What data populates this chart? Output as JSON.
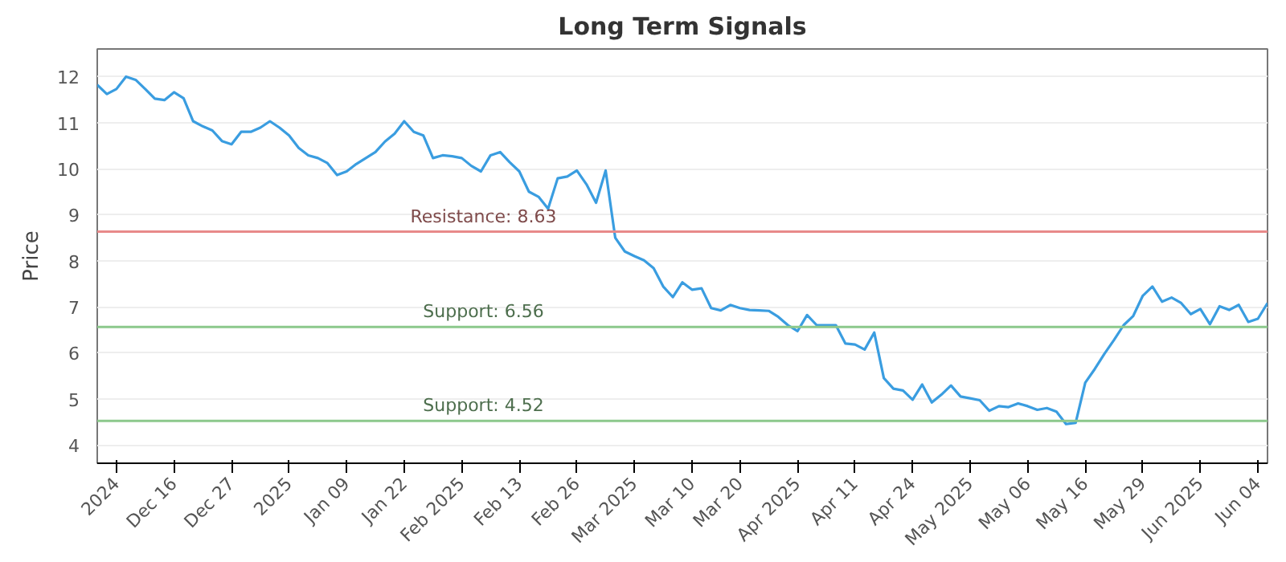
{
  "chart_data": {
    "type": "line",
    "title": "Long Term Signals",
    "ylabel": "Price",
    "categories": [
      null,
      null,
      "2024",
      null,
      null,
      null,
      null,
      null,
      "Dec 16",
      null,
      null,
      null,
      null,
      null,
      "Dec 27",
      null,
      null,
      null,
      null,
      null,
      "2025",
      null,
      null,
      null,
      null,
      null,
      "Jan 09",
      null,
      null,
      null,
      null,
      null,
      "Jan 22",
      null,
      null,
      null,
      null,
      null,
      "Feb 2025",
      null,
      null,
      null,
      null,
      null,
      "Feb 13",
      null,
      null,
      null,
      null,
      null,
      "Feb 26",
      null,
      null,
      null,
      null,
      null,
      "Mar 2025",
      null,
      null,
      null,
      null,
      null,
      "Mar 10",
      null,
      null,
      null,
      null,
      "Mar 20",
      null,
      null,
      null,
      null,
      null,
      "Apr 2025",
      null,
      null,
      null,
      null,
      null,
      "Apr 11",
      null,
      null,
      null,
      null,
      null,
      "Apr 24",
      null,
      null,
      null,
      null,
      null,
      "May 2025",
      null,
      null,
      null,
      null,
      null,
      "May 06",
      null,
      null,
      null,
      null,
      null,
      "May 16",
      null,
      null,
      null,
      null,
      null,
      "May 29",
      null,
      null,
      null,
      null,
      null,
      "Jun 2025",
      null,
      null,
      null,
      null,
      null,
      "Jun 04",
      null
    ],
    "series": [
      {
        "color": "#3a9de0",
        "values": [
          11.82,
          11.62,
          11.73,
          12.0,
          11.93,
          11.73,
          11.52,
          11.49,
          11.66,
          11.53,
          11.03,
          10.92,
          10.83,
          10.6,
          10.53,
          10.8,
          10.8,
          10.89,
          11.03,
          10.89,
          10.72,
          10.45,
          10.29,
          10.23,
          10.12,
          9.86,
          9.94,
          10.1,
          10.23,
          10.36,
          10.59,
          10.76,
          11.03,
          10.8,
          10.72,
          10.23,
          10.29,
          10.27,
          10.23,
          10.06,
          9.94,
          10.29,
          10.36,
          10.14,
          9.94,
          9.5,
          9.39,
          9.13,
          9.79,
          9.83,
          9.96,
          9.66,
          9.26,
          9.96,
          8.5,
          8.2,
          8.1,
          8.01,
          7.84,
          7.44,
          7.21,
          7.53,
          7.37,
          7.4,
          6.97,
          6.92,
          7.04,
          6.97,
          6.93,
          6.92,
          6.91,
          6.78,
          6.6,
          6.47,
          6.82,
          6.6,
          6.6,
          6.6,
          6.2,
          6.18,
          6.07,
          6.44,
          5.45,
          5.22,
          5.18,
          4.98,
          5.31,
          4.92,
          5.09,
          5.29,
          5.05,
          5.01,
          4.97,
          4.74,
          4.84,
          4.82,
          4.9,
          4.84,
          4.76,
          4.8,
          4.72,
          4.45,
          4.48,
          5.35,
          5.65,
          5.98,
          6.28,
          6.6,
          6.8,
          7.24,
          7.44,
          7.11,
          7.2,
          7.08,
          6.84,
          6.95,
          6.62,
          7.01,
          6.93,
          7.04,
          6.67,
          6.74,
          7.08
        ]
      }
    ],
    "ylim": [
      3.6,
      12.6
    ],
    "yticks": [
      4,
      5,
      6,
      7,
      8,
      9,
      10,
      11,
      12
    ],
    "grid": "y",
    "line_style": "solid",
    "ref_lines": [
      {
        "axis": "y",
        "value": 8.63,
        "label": "Resistance: 8.63",
        "color": "#e88a8a"
      },
      {
        "axis": "y",
        "value": 6.56,
        "label": "Support: 6.56",
        "color": "#8cc98c"
      },
      {
        "axis": "y",
        "value": 4.52,
        "label": "Support: 4.52",
        "color": "#8cc98c"
      }
    ]
  }
}
